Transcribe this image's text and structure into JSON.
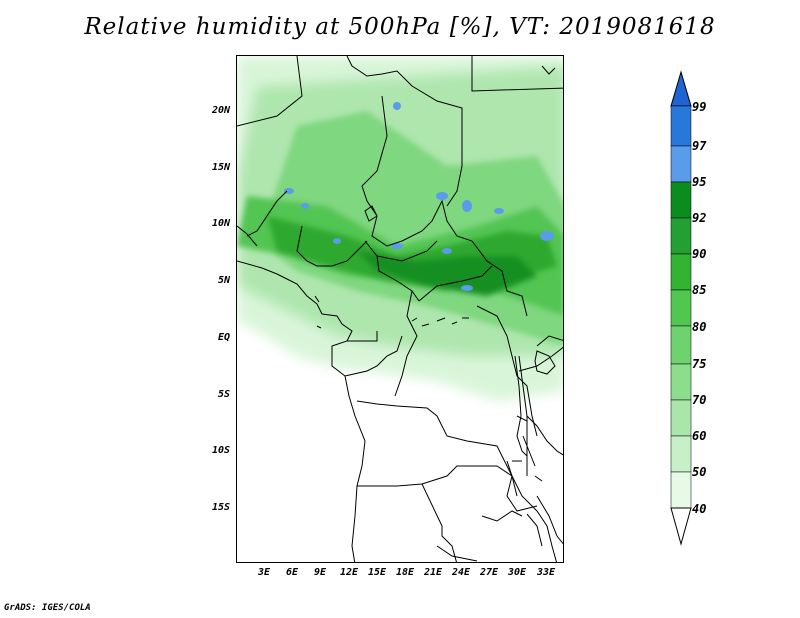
{
  "title": "Relative humidity at 500hPa [%], VT: 2019081618",
  "credit": "GrADS: IGES/COLA",
  "map": {
    "lat_labels": [
      "20N",
      "15N",
      "10N",
      "5N",
      "EQ",
      "5S",
      "10S",
      "15S"
    ],
    "lon_labels": [
      "3E",
      "6E",
      "9E",
      "12E",
      "15E",
      "18E",
      "21E",
      "24E",
      "27E",
      "30E",
      "33E"
    ]
  },
  "colorbar": {
    "levels": [
      "99",
      "97",
      "95",
      "92",
      "90",
      "85",
      "80",
      "75",
      "70",
      "60",
      "50",
      "40"
    ],
    "colors": [
      "#1e64d2",
      "#2878dc",
      "#5a9bea",
      "#0a8c1e",
      "#23a033",
      "#32b432",
      "#50c850",
      "#6ed26e",
      "#8cde8c",
      "#aae6aa",
      "#c8f0c8",
      "#e6fae6"
    ]
  },
  "legend_entries": [
    {
      "label": "40-50",
      "color": "#e6fae6"
    },
    {
      "label": "50-60",
      "color": "#c8f0c8"
    },
    {
      "label": "60-70",
      "color": "#aae6aa"
    },
    {
      "label": "70-75",
      "color": "#8cde8c"
    },
    {
      "label": "75-80",
      "color": "#6ed26e"
    },
    {
      "label": "80-85",
      "color": "#50c850"
    },
    {
      "label": "85-90",
      "color": "#32b432"
    },
    {
      "label": "90-92",
      "color": "#23a033"
    },
    {
      "label": "92-95",
      "color": "#0a8c1e"
    },
    {
      "label": "95-97",
      "color": "#5a9bea"
    },
    {
      "label": "97-99",
      "color": "#2878dc"
    },
    {
      "label": ">99",
      "color": "#1e64d2"
    }
  ]
}
